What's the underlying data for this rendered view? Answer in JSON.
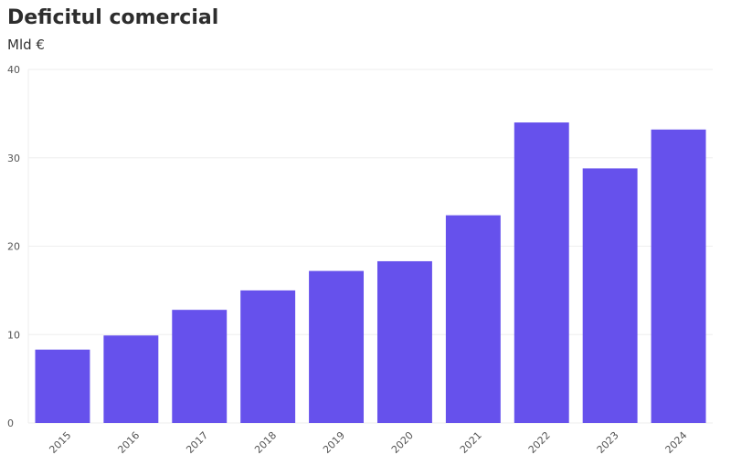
{
  "chart_data": {
    "type": "bar",
    "title": "Deficitul comercial",
    "ylabel": "Mld €",
    "xlabel": "",
    "categories": [
      "2015",
      "2016",
      "2017",
      "2018",
      "2019",
      "2020",
      "2021",
      "2022",
      "2023",
      "2024"
    ],
    "values": [
      8.3,
      9.9,
      12.8,
      15.0,
      17.2,
      18.3,
      23.5,
      34.0,
      28.8,
      33.2
    ],
    "ylim": [
      0,
      40
    ],
    "yticks": [
      "0",
      "10",
      "20",
      "30",
      "40"
    ],
    "grid": true,
    "colors": {
      "bar": "#6651ec",
      "grid": "#eeeeee"
    }
  }
}
